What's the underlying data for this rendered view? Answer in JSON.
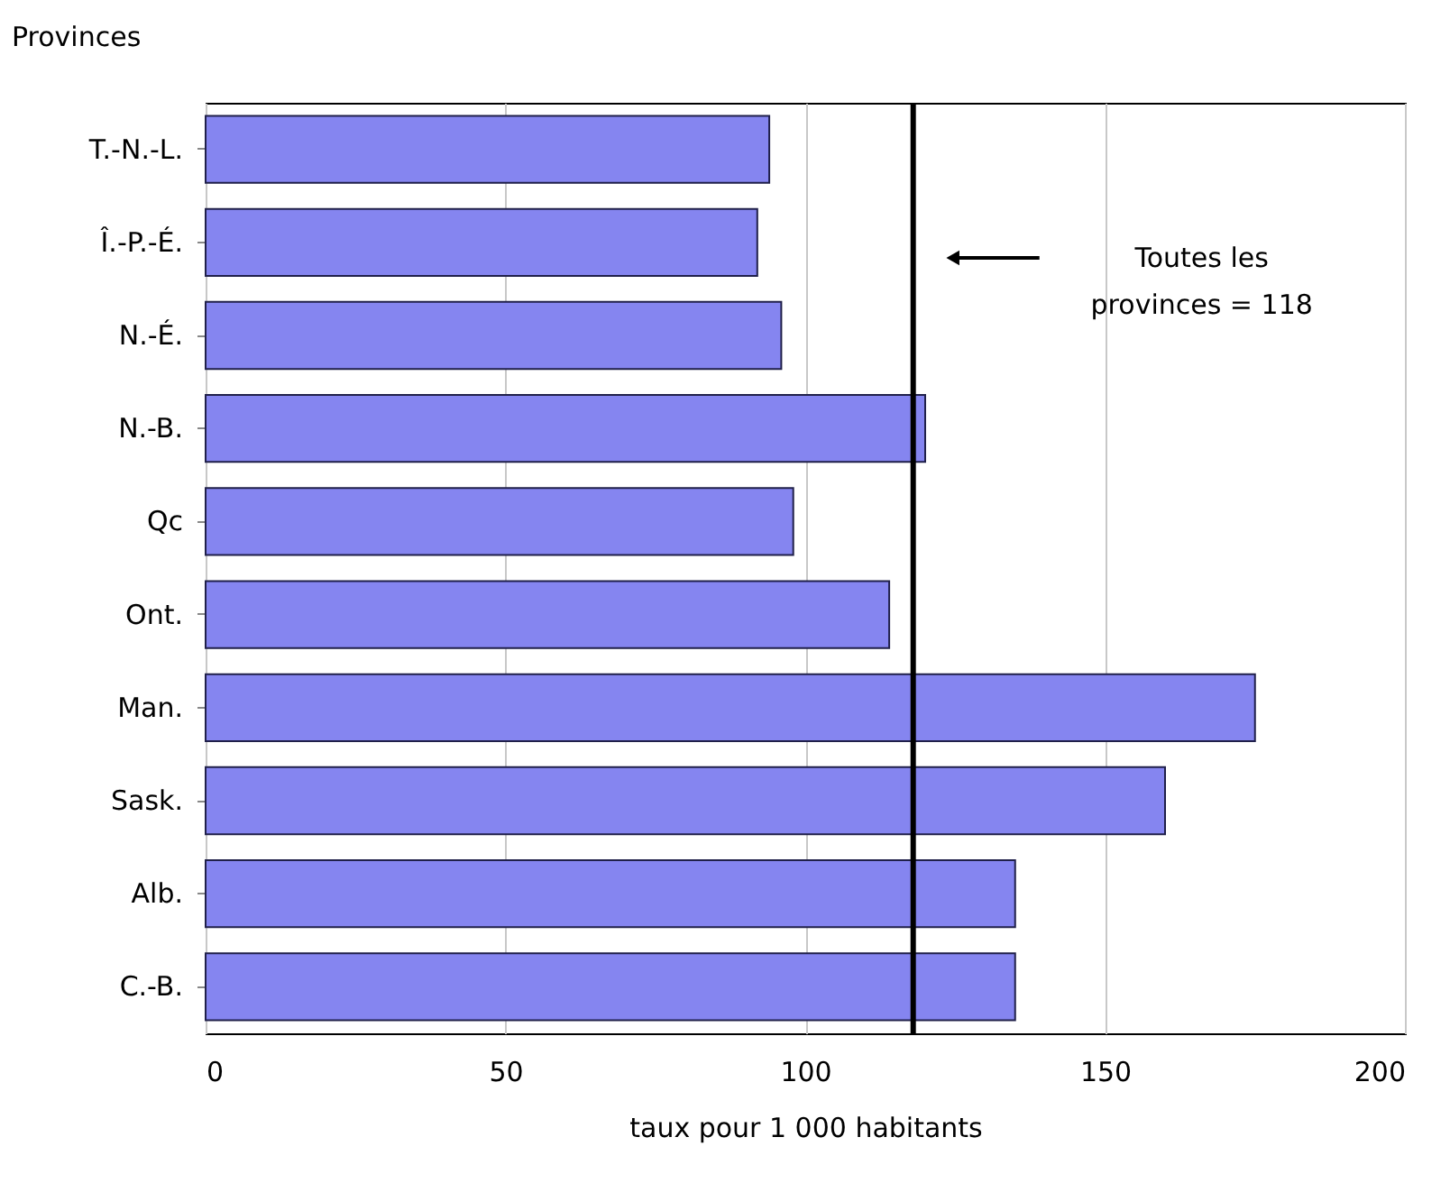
{
  "chart_data": {
    "type": "bar",
    "orientation": "horizontal",
    "ylabel": "Provinces",
    "xlabel": "taux pour 1 000 habitants",
    "categories": [
      "T.-N.-L.",
      "Î.-P.-É.",
      "N.-É.",
      "N.-B.",
      "Qc",
      "Ont.",
      "Man.",
      "Sask.",
      "Alb.",
      "C.-B."
    ],
    "values": [
      94,
      92,
      96,
      120,
      98,
      114,
      175,
      160,
      135,
      135
    ],
    "color": "#8585f0",
    "xlim": [
      0,
      200
    ],
    "xticks": [
      0,
      50,
      100,
      150,
      200
    ],
    "grid": "x",
    "ref_lines": [
      {
        "axis": "x",
        "value": 118,
        "label": "Toutes les provinces = 118",
        "color": "#000000"
      }
    ]
  }
}
